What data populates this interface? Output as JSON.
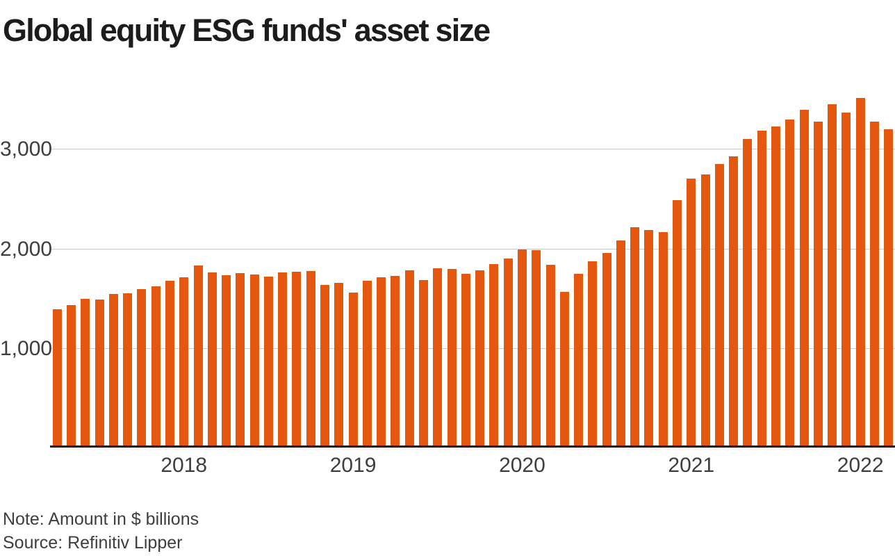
{
  "title": "Global equity ESG funds' asset size",
  "footnote": {
    "note": "Note: Amount in $ billions",
    "source": "Source: Refinitiv Lipper"
  },
  "colors": {
    "background": "#ffffff",
    "bar": "#e4570f",
    "grid": "#cccccc",
    "axis": "#1a1a1a",
    "title": "#1c1c1c",
    "label": "#3e3e3e"
  },
  "chart_data": {
    "type": "bar",
    "title": "Global equity ESG funds' asset size",
    "unit": "$ billions",
    "series_name": "Global equity ESG funds' asset size (month-end)",
    "x": [
      "2017-03",
      "2017-04",
      "2017-05",
      "2017-06",
      "2017-07",
      "2017-08",
      "2017-09",
      "2017-10",
      "2017-11",
      "2017-12",
      "2018-01",
      "2018-02",
      "2018-03",
      "2018-04",
      "2018-05",
      "2018-06",
      "2018-07",
      "2018-08",
      "2018-09",
      "2018-10",
      "2018-11",
      "2018-12",
      "2019-01",
      "2019-02",
      "2019-03",
      "2019-04",
      "2019-05",
      "2019-06",
      "2019-07",
      "2019-08",
      "2019-09",
      "2019-10",
      "2019-11",
      "2019-12",
      "2020-01",
      "2020-02",
      "2020-03",
      "2020-04",
      "2020-05",
      "2020-06",
      "2020-07",
      "2020-08",
      "2020-09",
      "2020-10",
      "2020-11",
      "2020-12",
      "2021-01",
      "2021-02",
      "2021-03",
      "2021-04",
      "2021-05",
      "2021-06",
      "2021-07",
      "2021-08",
      "2021-09",
      "2021-10",
      "2021-11",
      "2021-12",
      "2022-01",
      "2022-02"
    ],
    "values": [
      1400,
      1440,
      1500,
      1495,
      1550,
      1555,
      1600,
      1630,
      1680,
      1715,
      1835,
      1765,
      1740,
      1760,
      1745,
      1725,
      1765,
      1775,
      1780,
      1640,
      1665,
      1565,
      1680,
      1720,
      1735,
      1790,
      1690,
      1810,
      1805,
      1755,
      1790,
      1850,
      1910,
      2000,
      1990,
      1845,
      1570,
      1750,
      1880,
      1960,
      2090,
      2220,
      2195,
      2170,
      2490,
      2710,
      2750,
      2855,
      2935,
      3110,
      3190,
      3230,
      3300,
      3400,
      3280,
      3455,
      3375,
      3520,
      3285,
      3205
    ],
    "ylim": [
      0,
      3600
    ],
    "yticks": [
      {
        "value": 1000,
        "label": "1,000"
      },
      {
        "value": 2000,
        "label": "2,000"
      },
      {
        "value": 3000,
        "label": "3,000"
      }
    ],
    "xticks": [
      {
        "label": "2018",
        "bar_index": 9
      },
      {
        "label": "2019",
        "bar_index": 21
      },
      {
        "label": "2020",
        "bar_index": 33
      },
      {
        "label": "2021",
        "bar_index": 45
      },
      {
        "label": "2022",
        "bar_index": 57
      }
    ],
    "grid": "horizontal-only",
    "legend": "none"
  }
}
